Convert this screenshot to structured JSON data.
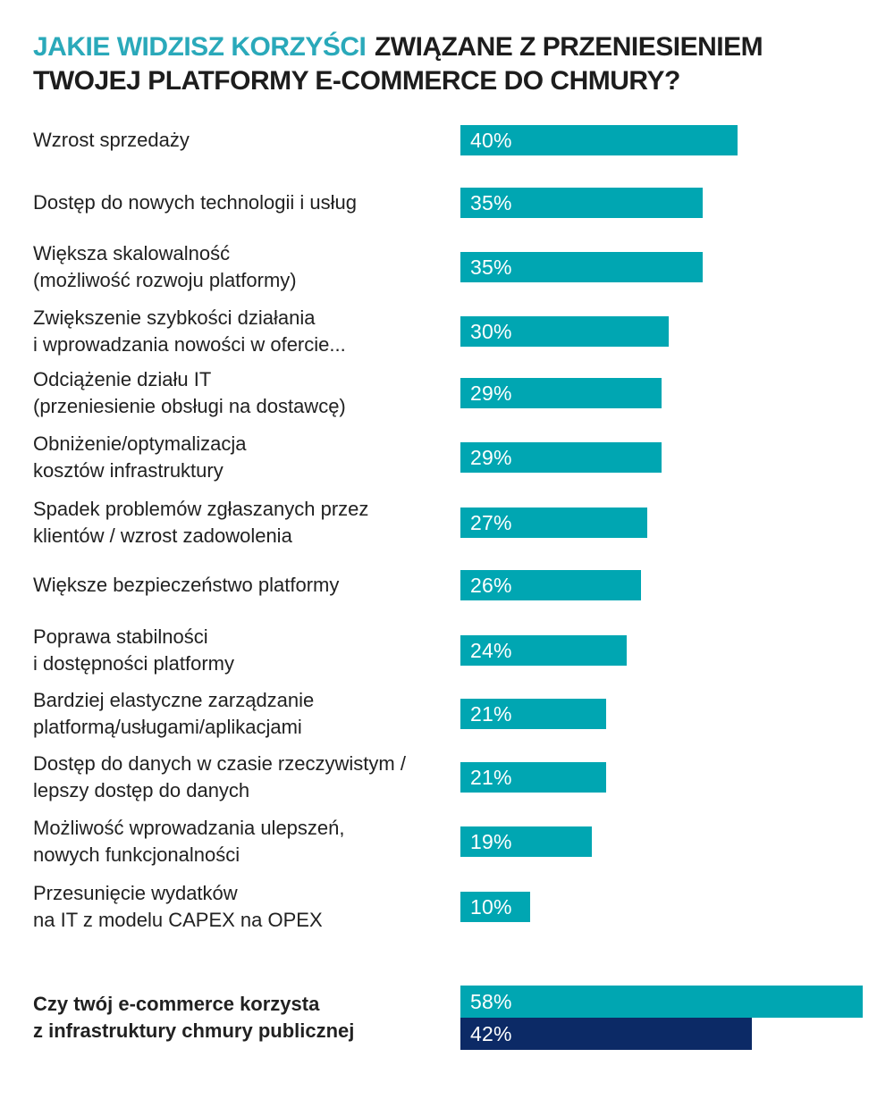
{
  "title": {
    "highlight": "JAKIE WIDZISZ KORZYŚCI",
    "line1_rest": "ZWIĄZANE Z PRZENIESIENIEM",
    "line2": "TWOJEJ PLATFORMY E-COMMERCE DO CHMURY?"
  },
  "colors": {
    "teal": "#00a6b2",
    "navy": "#0c2a66",
    "title_accent": "#2aa9ba",
    "text": "#212121"
  },
  "chart_data": {
    "type": "bar",
    "orientation": "horizontal",
    "unit": "%",
    "xlim": [
      0,
      60
    ],
    "grid": false,
    "legend": false,
    "rows": [
      {
        "label_lines": [
          "Wzrost sprzedaży"
        ],
        "value": 40,
        "value_label": "40%",
        "color": "teal"
      },
      {
        "label_lines": [
          "Dostęp do nowych technologii i usług"
        ],
        "value": 35,
        "value_label": "35%",
        "color": "teal"
      },
      {
        "label_lines": [
          "Większa skalowalność",
          "(możliwość rozwoju platformy)"
        ],
        "value": 35,
        "value_label": "35%",
        "color": "teal"
      },
      {
        "label_lines": [
          "Zwiększenie szybkości działania",
          "i wprowadzania nowości w ofercie..."
        ],
        "value": 30,
        "value_label": "30%",
        "color": "teal"
      },
      {
        "label_lines": [
          "Odciążenie działu IT",
          "(przeniesienie obsługi na dostawcę)"
        ],
        "value": 29,
        "value_label": "29%",
        "color": "teal"
      },
      {
        "label_lines": [
          "Obniżenie/optymalizacja",
          "kosztów infrastruktury"
        ],
        "value": 29,
        "value_label": "29%",
        "color": "teal"
      },
      {
        "label_lines": [
          "Spadek problemów zgłaszanych przez",
          "klientów / wzrost zadowolenia"
        ],
        "value": 27,
        "value_label": "27%",
        "color": "teal"
      },
      {
        "label_lines": [
          "Większe bezpieczeństwo platformy"
        ],
        "value": 26,
        "value_label": "26%",
        "color": "teal"
      },
      {
        "label_lines": [
          "Poprawa stabilności",
          "i dostępności platformy"
        ],
        "value": 24,
        "value_label": "24%",
        "color": "teal"
      },
      {
        "label_lines": [
          "Bardziej elastyczne zarządzanie",
          "platformą/usługami/aplikacjami"
        ],
        "value": 21,
        "value_label": "21%",
        "color": "teal"
      },
      {
        "label_lines": [
          "Dostęp do danych w czasie rzeczywistym /",
          "lepszy dostęp do danych"
        ],
        "value": 21,
        "value_label": "21%",
        "color": "teal"
      },
      {
        "label_lines": [
          "Możliwość wprowadzania ulepszeń,",
          "nowych funkcjonalności"
        ],
        "value": 19,
        "value_label": "19%",
        "color": "teal"
      },
      {
        "label_lines": [
          "Przesunięcie wydatków",
          "na IT z modelu CAPEX na OPEX"
        ],
        "value": 10,
        "value_label": "10%",
        "color": "teal"
      }
    ],
    "question_row": {
      "label_lines": [
        "Czy twój e-commerce korzysta",
        "z infrastruktury chmury publicznej"
      ],
      "bars": [
        {
          "value": 58,
          "value_label": "58%",
          "color": "teal"
        },
        {
          "value": 42,
          "value_label": "42%",
          "color": "navy"
        }
      ]
    }
  }
}
